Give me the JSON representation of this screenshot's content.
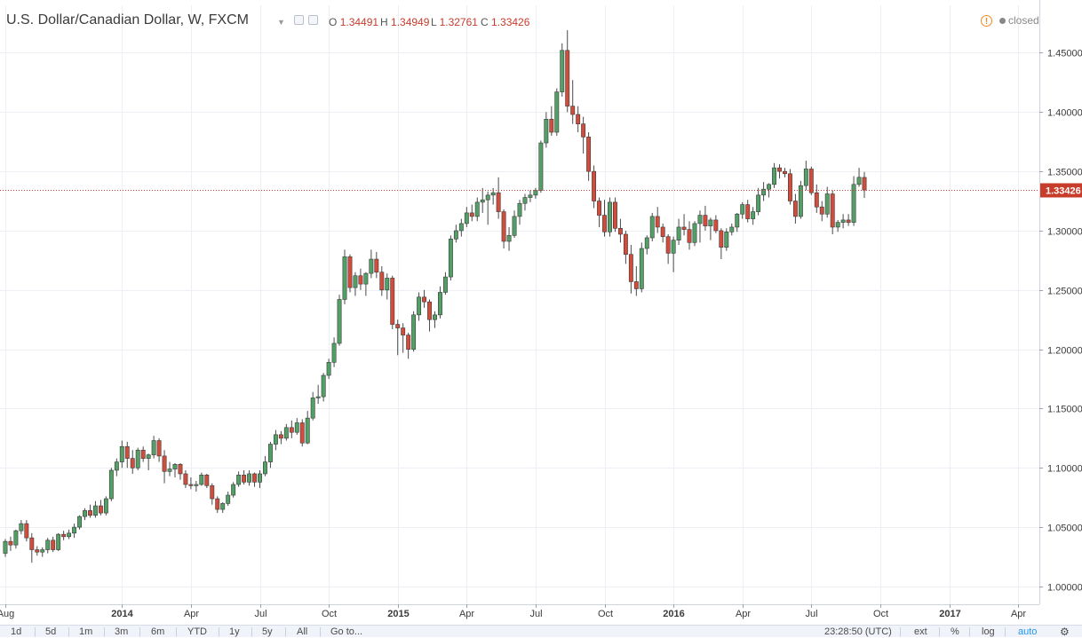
{
  "header": {
    "title": "U.S. Dollar/Canadian Dollar, W, FXCM",
    "ohlc": [
      {
        "label": "O",
        "value": "1.34491"
      },
      {
        "label": "H",
        "value": "1.34949"
      },
      {
        "label": "L",
        "value": "1.32761"
      },
      {
        "label": "C",
        "value": "1.33426"
      }
    ],
    "status": "closed"
  },
  "colors": {
    "up_fill": "#53a067",
    "down_fill": "#d24c3c",
    "wick": "#4a4a4a",
    "grid": "#eceff3",
    "price_line": "#c83c2c",
    "price_label_bg": "#c83c2c",
    "axis_text": "#3a3a3a"
  },
  "chart_data": {
    "type": "candlestick",
    "title": "U.S. Dollar/Canadian Dollar, W, FXCM",
    "interval": "weekly",
    "y_ticks": [
      "1.00000",
      "1.05000",
      "1.10000",
      "1.15000",
      "1.20000",
      "1.25000",
      "1.30000",
      "1.35000",
      "1.40000",
      "1.45000"
    ],
    "y_range": [
      0.985,
      1.49
    ],
    "x_ticks": [
      {
        "label": "Aug",
        "x": 0
      },
      {
        "label": "2014",
        "x": 22
      },
      {
        "label": "Apr",
        "x": 35
      },
      {
        "label": "Jul",
        "x": 48
      },
      {
        "label": "Oct",
        "x": 61
      },
      {
        "label": "2015",
        "x": 74
      },
      {
        "label": "Apr",
        "x": 87
      },
      {
        "label": "Jul",
        "x": 100
      },
      {
        "label": "Oct",
        "x": 113
      },
      {
        "label": "2016",
        "x": 126
      },
      {
        "label": "Apr",
        "x": 139
      },
      {
        "label": "Jul",
        "x": 152
      },
      {
        "label": "Oct",
        "x": 165
      },
      {
        "label": "2017",
        "x": 178
      },
      {
        "label": "Apr",
        "x": 191
      }
    ],
    "x_range": [
      -1,
      195
    ],
    "last_price": 1.33426,
    "last_price_label": "1.33426",
    "grid": true,
    "candles": [
      [
        1.028,
        1.04,
        1.025,
        1.038
      ],
      [
        1.038,
        1.042,
        1.03,
        1.035
      ],
      [
        1.035,
        1.048,
        1.032,
        1.047
      ],
      [
        1.047,
        1.056,
        1.044,
        1.053
      ],
      [
        1.053,
        1.056,
        1.038,
        1.041
      ],
      [
        1.041,
        1.045,
        1.02,
        1.031
      ],
      [
        1.031,
        1.034,
        1.026,
        1.029
      ],
      [
        1.029,
        1.033,
        1.025,
        1.031
      ],
      [
        1.031,
        1.041,
        1.028,
        1.039
      ],
      [
        1.039,
        1.042,
        1.029,
        1.031
      ],
      [
        1.031,
        1.045,
        1.03,
        1.044
      ],
      [
        1.044,
        1.047,
        1.039,
        1.042
      ],
      [
        1.042,
        1.048,
        1.04,
        1.045
      ],
      [
        1.045,
        1.053,
        1.041,
        1.05
      ],
      [
        1.05,
        1.06,
        1.048,
        1.059
      ],
      [
        1.059,
        1.066,
        1.056,
        1.064
      ],
      [
        1.064,
        1.069,
        1.058,
        1.06
      ],
      [
        1.06,
        1.072,
        1.058,
        1.068
      ],
      [
        1.068,
        1.073,
        1.06,
        1.062
      ],
      [
        1.062,
        1.076,
        1.06,
        1.074
      ],
      [
        1.074,
        1.1,
        1.072,
        1.098
      ],
      [
        1.098,
        1.108,
        1.093,
        1.105
      ],
      [
        1.105,
        1.123,
        1.1,
        1.118
      ],
      [
        1.118,
        1.122,
        1.1,
        1.108
      ],
      [
        1.108,
        1.115,
        1.095,
        1.1
      ],
      [
        1.1,
        1.117,
        1.098,
        1.115
      ],
      [
        1.115,
        1.118,
        1.105,
        1.108
      ],
      [
        1.108,
        1.112,
        1.098,
        1.111
      ],
      [
        1.111,
        1.127,
        1.108,
        1.123
      ],
      [
        1.123,
        1.125,
        1.105,
        1.11
      ],
      [
        1.11,
        1.115,
        1.087,
        1.097
      ],
      [
        1.097,
        1.105,
        1.093,
        1.099
      ],
      [
        1.099,
        1.104,
        1.092,
        1.103
      ],
      [
        1.103,
        1.104,
        1.09,
        1.095
      ],
      [
        1.095,
        1.098,
        1.083,
        1.086
      ],
      [
        1.086,
        1.092,
        1.082,
        1.085
      ],
      [
        1.085,
        1.089,
        1.08,
        1.086
      ],
      [
        1.086,
        1.096,
        1.085,
        1.094
      ],
      [
        1.094,
        1.095,
        1.083,
        1.085
      ],
      [
        1.085,
        1.087,
        1.069,
        1.074
      ],
      [
        1.074,
        1.076,
        1.062,
        1.065
      ],
      [
        1.065,
        1.071,
        1.062,
        1.07
      ],
      [
        1.07,
        1.08,
        1.068,
        1.077
      ],
      [
        1.077,
        1.088,
        1.075,
        1.086
      ],
      [
        1.086,
        1.097,
        1.084,
        1.094
      ],
      [
        1.094,
        1.098,
        1.086,
        1.088
      ],
      [
        1.088,
        1.098,
        1.085,
        1.095
      ],
      [
        1.095,
        1.096,
        1.084,
        1.088
      ],
      [
        1.088,
        1.098,
        1.083,
        1.095
      ],
      [
        1.095,
        1.11,
        1.093,
        1.105
      ],
      [
        1.105,
        1.122,
        1.1,
        1.12
      ],
      [
        1.12,
        1.132,
        1.115,
        1.128
      ],
      [
        1.128,
        1.131,
        1.12,
        1.125
      ],
      [
        1.125,
        1.137,
        1.123,
        1.134
      ],
      [
        1.134,
        1.14,
        1.125,
        1.13
      ],
      [
        1.13,
        1.142,
        1.128,
        1.138
      ],
      [
        1.138,
        1.141,
        1.118,
        1.121
      ],
      [
        1.121,
        1.148,
        1.12,
        1.142
      ],
      [
        1.142,
        1.164,
        1.14,
        1.159
      ],
      [
        1.159,
        1.17,
        1.154,
        1.16
      ],
      [
        1.16,
        1.18,
        1.156,
        1.178
      ],
      [
        1.178,
        1.192,
        1.175,
        1.189
      ],
      [
        1.189,
        1.21,
        1.185,
        1.205
      ],
      [
        1.205,
        1.246,
        1.203,
        1.242
      ],
      [
        1.242,
        1.284,
        1.238,
        1.278
      ],
      [
        1.278,
        1.28,
        1.248,
        1.252
      ],
      [
        1.252,
        1.265,
        1.245,
        1.262
      ],
      [
        1.262,
        1.268,
        1.25,
        1.255
      ],
      [
        1.255,
        1.265,
        1.245,
        1.264
      ],
      [
        1.264,
        1.284,
        1.26,
        1.276
      ],
      [
        1.276,
        1.282,
        1.26,
        1.265
      ],
      [
        1.265,
        1.27,
        1.245,
        1.25
      ],
      [
        1.25,
        1.264,
        1.242,
        1.26
      ],
      [
        1.26,
        1.262,
        1.217,
        1.221
      ],
      [
        1.221,
        1.225,
        1.195,
        1.218
      ],
      [
        1.218,
        1.222,
        1.197,
        1.212
      ],
      [
        1.212,
        1.214,
        1.192,
        1.2
      ],
      [
        1.2,
        1.232,
        1.198,
        1.229
      ],
      [
        1.229,
        1.248,
        1.224,
        1.244
      ],
      [
        1.244,
        1.25,
        1.235,
        1.24
      ],
      [
        1.24,
        1.242,
        1.215,
        1.225
      ],
      [
        1.225,
        1.232,
        1.218,
        1.229
      ],
      [
        1.229,
        1.253,
        1.226,
        1.248
      ],
      [
        1.248,
        1.265,
        1.246,
        1.261
      ],
      [
        1.261,
        1.296,
        1.258,
        1.293
      ],
      [
        1.293,
        1.305,
        1.29,
        1.3
      ],
      [
        1.3,
        1.31,
        1.295,
        1.306
      ],
      [
        1.306,
        1.32,
        1.303,
        1.315
      ],
      [
        1.315,
        1.322,
        1.308,
        1.312
      ],
      [
        1.312,
        1.328,
        1.308,
        1.324
      ],
      [
        1.324,
        1.336,
        1.315,
        1.326
      ],
      [
        1.326,
        1.333,
        1.305,
        1.33
      ],
      [
        1.33,
        1.336,
        1.322,
        1.332
      ],
      [
        1.332,
        1.345,
        1.31,
        1.316
      ],
      [
        1.316,
        1.318,
        1.285,
        1.291
      ],
      [
        1.291,
        1.303,
        1.283,
        1.296
      ],
      [
        1.296,
        1.317,
        1.294,
        1.312
      ],
      [
        1.312,
        1.326,
        1.305,
        1.323
      ],
      [
        1.323,
        1.331,
        1.317,
        1.328
      ],
      [
        1.328,
        1.334,
        1.324,
        1.33
      ],
      [
        1.33,
        1.336,
        1.327,
        1.334
      ],
      [
        1.334,
        1.376,
        1.332,
        1.374
      ],
      [
        1.374,
        1.4,
        1.37,
        1.394
      ],
      [
        1.394,
        1.405,
        1.38,
        1.383
      ],
      [
        1.383,
        1.42,
        1.38,
        1.417
      ],
      [
        1.417,
        1.458,
        1.413,
        1.452
      ],
      [
        1.452,
        1.469,
        1.4,
        1.405
      ],
      [
        1.405,
        1.427,
        1.39,
        1.398
      ],
      [
        1.398,
        1.405,
        1.383,
        1.39
      ],
      [
        1.39,
        1.396,
        1.365,
        1.379
      ],
      [
        1.379,
        1.383,
        1.342,
        1.35
      ],
      [
        1.35,
        1.355,
        1.319,
        1.325
      ],
      [
        1.325,
        1.328,
        1.303,
        1.313
      ],
      [
        1.313,
        1.326,
        1.295,
        1.299
      ],
      [
        1.299,
        1.328,
        1.295,
        1.324
      ],
      [
        1.324,
        1.328,
        1.299,
        1.302
      ],
      [
        1.302,
        1.31,
        1.29,
        1.297
      ],
      [
        1.297,
        1.3,
        1.272,
        1.28
      ],
      [
        1.28,
        1.288,
        1.247,
        1.257
      ],
      [
        1.257,
        1.27,
        1.245,
        1.251
      ],
      [
        1.251,
        1.29,
        1.248,
        1.285
      ],
      [
        1.285,
        1.296,
        1.28,
        1.294
      ],
      [
        1.294,
        1.315,
        1.291,
        1.312
      ],
      [
        1.312,
        1.32,
        1.298,
        1.303
      ],
      [
        1.303,
        1.306,
        1.29,
        1.295
      ],
      [
        1.295,
        1.297,
        1.272,
        1.281
      ],
      [
        1.281,
        1.295,
        1.265,
        1.292
      ],
      [
        1.292,
        1.31,
        1.288,
        1.303
      ],
      [
        1.303,
        1.314,
        1.296,
        1.301
      ],
      [
        1.301,
        1.308,
        1.284,
        1.29
      ],
      [
        1.29,
        1.308,
        1.287,
        1.306
      ],
      [
        1.306,
        1.317,
        1.29,
        1.313
      ],
      [
        1.313,
        1.321,
        1.3,
        1.304
      ],
      [
        1.304,
        1.311,
        1.292,
        1.309
      ],
      [
        1.309,
        1.313,
        1.298,
        1.3
      ],
      [
        1.3,
        1.302,
        1.276,
        1.286
      ],
      [
        1.286,
        1.302,
        1.283,
        1.299
      ],
      [
        1.299,
        1.306,
        1.296,
        1.303
      ],
      [
        1.303,
        1.315,
        1.299,
        1.314
      ],
      [
        1.314,
        1.324,
        1.31,
        1.322
      ],
      [
        1.322,
        1.326,
        1.307,
        1.31
      ],
      [
        1.31,
        1.32,
        1.305,
        1.316
      ],
      [
        1.316,
        1.336,
        1.313,
        1.33
      ],
      [
        1.33,
        1.341,
        1.325,
        1.335
      ],
      [
        1.335,
        1.34,
        1.328,
        1.339
      ],
      [
        1.339,
        1.357,
        1.336,
        1.353
      ],
      [
        1.353,
        1.356,
        1.344,
        1.35
      ],
      [
        1.35,
        1.353,
        1.345,
        1.348
      ],
      [
        1.348,
        1.352,
        1.322,
        1.325
      ],
      [
        1.325,
        1.331,
        1.306,
        1.312
      ],
      [
        1.312,
        1.342,
        1.31,
        1.338
      ],
      [
        1.338,
        1.359,
        1.334,
        1.352
      ],
      [
        1.352,
        1.354,
        1.33,
        1.332
      ],
      [
        1.332,
        1.339,
        1.315,
        1.32
      ],
      [
        1.32,
        1.325,
        1.308,
        1.314
      ],
      [
        1.314,
        1.337,
        1.311,
        1.331
      ],
      [
        1.331,
        1.334,
        1.297,
        1.303
      ],
      [
        1.303,
        1.309,
        1.299,
        1.307
      ],
      [
        1.307,
        1.314,
        1.302,
        1.309
      ],
      [
        1.309,
        1.314,
        1.304,
        1.307
      ],
      [
        1.307,
        1.346,
        1.304,
        1.339
      ],
      [
        1.339,
        1.353,
        1.337,
        1.345
      ],
      [
        1.3449,
        1.3495,
        1.3276,
        1.3343
      ]
    ],
    "candle_x_start": 0
  },
  "toolbar": {
    "items": [
      "1d",
      "5d",
      "1m",
      "3m",
      "6m",
      "YTD",
      "1y",
      "5y",
      "All",
      "Go to..."
    ],
    "time": "23:28:50 (UTC)",
    "ext": "ext",
    "percent": "%",
    "log": "log",
    "auto": "auto"
  }
}
